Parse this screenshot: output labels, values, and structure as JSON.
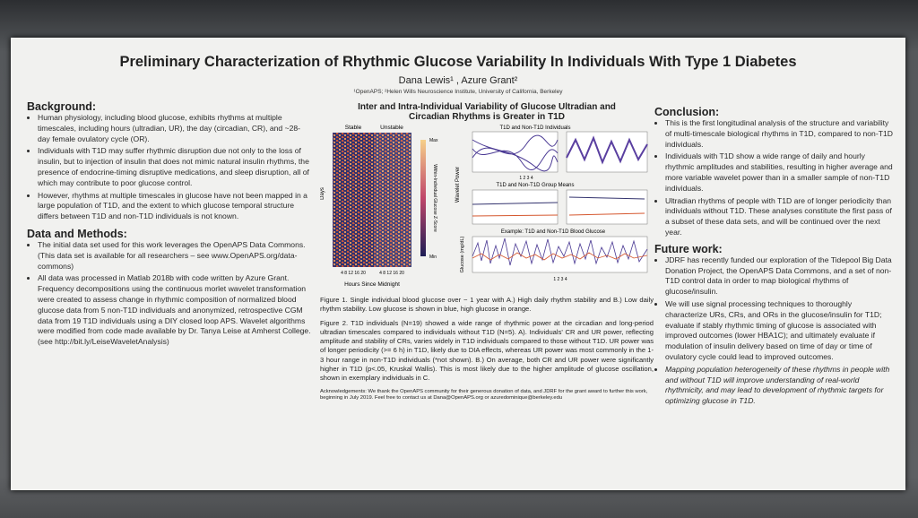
{
  "header": {
    "title": "Preliminary Characterization of Rhythmic Glucose Variability In Individuals With Type 1 Diabetes",
    "authors": "Dana Lewis¹ , Azure Grant²",
    "affiliation": "¹OpenAPS; ²Helen Wills Neuroscience Institute, University of California, Berkeley"
  },
  "left": {
    "background_heading": "Background:",
    "background_bullets": [
      "Human physiology, including blood glucose, exhibits rhythms at multiple timescales, including hours (ultradian, UR), the day (circadian, CR), and ~28-day female ovulatory cycle (OR).",
      "Individuals with T1D may suffer rhythmic disruption due not only to the loss of insulin, but to injection of insulin that does not mimic natural insulin rhythms, the presence of endocrine-timing disruptive medications, and sleep disruption, all of which may contribute to poor glucose control.",
      "However, rhythms at multiple timescales in glucose have not been mapped in a large population of T1D, and the extent to which glucose temporal structure differs between T1D and non-T1D individuals is not known."
    ],
    "methods_heading": "Data and Methods:",
    "methods_bullets": [
      "The initial data set used for this work leverages the OpenAPS Data Commons. (This data set is available for all researchers – see www.OpenAPS.org/data-commons)",
      "All data was processed in Matlab 2018b with code written by Azure Grant. Frequency decompositions using the continuous morlet wavelet transformation were created to assess change in rhythmic composition of normalized blood glucose data from 5 non-T1D individuals and anonymized, retrospective CGM data from 19 T1D individuals using a DIY closed loop APS. Wavelet algorithms were modified from code made available by Dr. Tanya Leise at Amherst College. (see http://bit.ly/LeiseWaveletAnalysis)"
    ]
  },
  "middle": {
    "figure_title": "Inter and Intra-Individual Variability of Glucose Ultradian and Circadian Rhythms is Greater in T1D",
    "stable": "Stable",
    "unstable": "Unstable",
    "days": "Days",
    "hours": "Hours Since Midnight",
    "hour_ticks": "4  8  12  16  20",
    "max": "Max",
    "min": "Min",
    "colorbar_label": "Within-Individual Glucose Z-Score",
    "panel_a": "T1D and Non-T1D Individuals",
    "panel_b": "T1D and Non-T1D Group Means",
    "panel_c": "Example: T1D and Non-T1D Blood Glucose",
    "wavelet_power": "Wavelet Power",
    "glucose_label": "Glucose (mg/dL)",
    "week_ticks": "1       2       3       4",
    "fig1": "Figure 1. Single individual blood glucose over ~ 1 year with A.) High daily rhythm stability and B.) Low daily rhythm stability. Low glucose is shown in blue, high glucose in orange.",
    "fig2": "Figure 2. T1D individuals (N=19) showed a wide range of rhythmic power at the circadian and long-period ultradian timescales compared to individuals without T1D (N=5). A). Individuals' CR and UR power, reflecting amplitude and stability of CRs, varies widely in T1D individuals compared to those without T1D. UR power was of longer periodicity (>= 6 h) in T1D, likely due to DIA effects, whereas UR power was most commonly in the 1-3 hour range in non-T1D individuals (*not shown). B.) On average, both CR and UR power were significantly higher in T1D (p<.05, Kruskal Wallis). This is most likely due to the higher amplitude of glucose oscillation, shown in exemplary individuals in C.",
    "ack": "Acknowledgements: We thank the OpenAPS community for their generous donation of data, and JDRF for the grant award to further this work, beginning in July 2019. Feel free to contact us at Dana@OpenAPS.org or azuredominique@berkeley.edu"
  },
  "right": {
    "conclusion_heading": "Conclusion:",
    "conclusion_bullets": [
      "This is the first longitudinal analysis of the structure and variability of multi-timescale biological rhythms in T1D, compared to non-T1D individuals.",
      "Individuals with T1D show a wide range of daily and hourly rhythmic amplitudes and stabilities, resulting in higher average and more variable wavelet power than in a smaller sample of non-T1D individuals.",
      "Ultradian rhythms of people with T1D are of longer periodicity than individuals without T1D. These analyses constitute the first pass of a subset of these data sets, and will be continued over the next year."
    ],
    "future_heading": "Future work:",
    "future_bullets": [
      "JDRF has recently funded our exploration of the Tidepool Big Data Donation Project, the OpenAPS Data Commons, and a set of non-T1D control data in order to map biological rhythms of glucose/insulin.",
      "We will use signal processing techniques to thoroughly characterize URs, CRs, and ORs in the glucose/insulin for T1D; evaluate if stably rhythmic timing of glucose is associated with improved outcomes (lower HBA1C); and ultimately evaluate if modulation of insulin delivery based on time of day or time of ovulatory cycle could lead to improved outcomes.",
      "Mapping population heterogeneity of these rhythms in people with and without T1D will improve understanding of real-world rhythmicity, and may lead to development of rhythmic targets for optimizing glucose in T1D."
    ]
  }
}
